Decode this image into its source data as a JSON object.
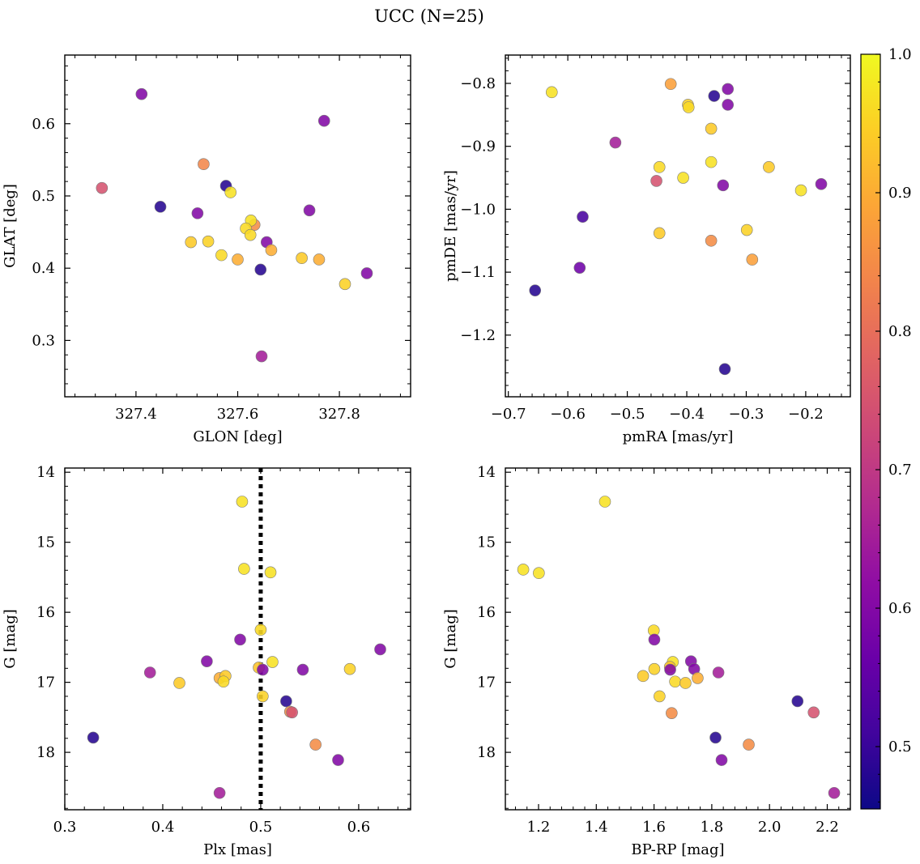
{
  "figure": {
    "title": "UCC (N=25)"
  },
  "colorbar": {
    "colormap": "plasma",
    "range": [
      0.455,
      1.0
    ],
    "ticks": [
      0.5,
      0.6,
      0.7,
      0.8,
      0.9,
      1.0
    ],
    "tick_labels": [
      "0.5",
      "0.6",
      "0.7",
      "0.8",
      "0.9",
      "1.0"
    ]
  },
  "chart_data": [
    {
      "type": "scatter",
      "id": "glon-glat",
      "title": "",
      "xlabel": "GLON [deg]",
      "ylabel": "GLAT [deg]",
      "xlim": [
        327.26,
        327.94
      ],
      "ylim": [
        0.222,
        0.695
      ],
      "y_inverted": false,
      "xticks": [
        327.4,
        327.6,
        327.8
      ],
      "xtick_labels": [
        "327.4",
        "327.6",
        "327.8"
      ],
      "yticks": [
        0.3,
        0.4,
        0.5,
        0.6
      ],
      "ytick_labels": [
        "0.3",
        "0.4",
        "0.5",
        "0.6"
      ],
      "points": [
        {
          "x": 327.411,
          "y": 0.641,
          "c": 0.6
        },
        {
          "x": 327.77,
          "y": 0.604,
          "c": 0.6
        },
        {
          "x": 327.333,
          "y": 0.511,
          "c": 0.75
        },
        {
          "x": 327.533,
          "y": 0.544,
          "c": 0.84
        },
        {
          "x": 327.448,
          "y": 0.485,
          "c": 0.48
        },
        {
          "x": 327.577,
          "y": 0.514,
          "c": 0.48
        },
        {
          "x": 327.586,
          "y": 0.505,
          "c": 0.97
        },
        {
          "x": 327.521,
          "y": 0.476,
          "c": 0.6
        },
        {
          "x": 327.741,
          "y": 0.48,
          "c": 0.6
        },
        {
          "x": 327.633,
          "y": 0.46,
          "c": 0.85
        },
        {
          "x": 327.626,
          "y": 0.466,
          "c": 0.97
        },
        {
          "x": 327.616,
          "y": 0.455,
          "c": 0.96
        },
        {
          "x": 327.625,
          "y": 0.446,
          "c": 0.96
        },
        {
          "x": 327.657,
          "y": 0.436,
          "c": 0.6
        },
        {
          "x": 327.508,
          "y": 0.436,
          "c": 0.94
        },
        {
          "x": 327.542,
          "y": 0.437,
          "c": 0.95
        },
        {
          "x": 327.666,
          "y": 0.425,
          "c": 0.9
        },
        {
          "x": 327.568,
          "y": 0.418,
          "c": 0.96
        },
        {
          "x": 327.6,
          "y": 0.412,
          "c": 0.9
        },
        {
          "x": 327.726,
          "y": 0.414,
          "c": 0.94
        },
        {
          "x": 327.76,
          "y": 0.412,
          "c": 0.9
        },
        {
          "x": 327.645,
          "y": 0.398,
          "c": 0.48
        },
        {
          "x": 327.811,
          "y": 0.378,
          "c": 0.95
        },
        {
          "x": 327.854,
          "y": 0.393,
          "c": 0.6
        },
        {
          "x": 327.647,
          "y": 0.278,
          "c": 0.65
        }
      ]
    },
    {
      "type": "scatter",
      "id": "pmra-pmde",
      "title": "",
      "xlabel": "pmRA [mas/yr]",
      "ylabel": "pmDE [mas/yr]",
      "xlim": [
        -0.705,
        -0.125
      ],
      "ylim": [
        -1.298,
        -0.755
      ],
      "y_inverted": false,
      "xticks": [
        -0.7,
        -0.6,
        -0.5,
        -0.4,
        -0.3,
        -0.2
      ],
      "xtick_labels": [
        "−0.7",
        "−0.6",
        "−0.5",
        "−0.4",
        "−0.3",
        "−0.2"
      ],
      "yticks": [
        -1.2,
        -1.1,
        -1.0,
        -0.9,
        -0.8
      ],
      "ytick_labels": [
        "−1.2",
        "−1.1",
        "−1.0",
        "−0.9",
        "−0.8"
      ],
      "points": [
        {
          "x": -0.627,
          "y": -0.814,
          "c": 0.97
        },
        {
          "x": -0.427,
          "y": -0.801,
          "c": 0.88
        },
        {
          "x": -0.354,
          "y": -0.82,
          "c": 0.48
        },
        {
          "x": -0.331,
          "y": -0.809,
          "c": 0.6
        },
        {
          "x": -0.331,
          "y": -0.834,
          "c": 0.6
        },
        {
          "x": -0.398,
          "y": -0.834,
          "c": 0.95
        },
        {
          "x": -0.397,
          "y": -0.838,
          "c": 0.96
        },
        {
          "x": -0.359,
          "y": -0.872,
          "c": 0.94
        },
        {
          "x": -0.52,
          "y": -0.894,
          "c": 0.65
        },
        {
          "x": -0.446,
          "y": -0.933,
          "c": 0.96
        },
        {
          "x": -0.359,
          "y": -0.925,
          "c": 0.97
        },
        {
          "x": -0.262,
          "y": -0.933,
          "c": 0.94
        },
        {
          "x": -0.406,
          "y": -0.95,
          "c": 0.97
        },
        {
          "x": -0.451,
          "y": -0.955,
          "c": 0.75
        },
        {
          "x": -0.339,
          "y": -0.962,
          "c": 0.6
        },
        {
          "x": -0.208,
          "y": -0.97,
          "c": 0.97
        },
        {
          "x": -0.174,
          "y": -0.96,
          "c": 0.6
        },
        {
          "x": -0.575,
          "y": -1.012,
          "c": 0.52
        },
        {
          "x": -0.446,
          "y": -1.038,
          "c": 0.94
        },
        {
          "x": -0.299,
          "y": -1.033,
          "c": 0.95
        },
        {
          "x": -0.359,
          "y": -1.05,
          "c": 0.85
        },
        {
          "x": -0.29,
          "y": -1.08,
          "c": 0.88
        },
        {
          "x": -0.58,
          "y": -1.093,
          "c": 0.57
        },
        {
          "x": -0.655,
          "y": -1.129,
          "c": 0.48
        },
        {
          "x": -0.336,
          "y": -1.254,
          "c": 0.48
        }
      ]
    },
    {
      "type": "scatter",
      "id": "plx-g",
      "title": "",
      "xlabel": "Plx [mas]",
      "ylabel": "G [mag]",
      "xlim": [
        0.3,
        0.653
      ],
      "ylim": [
        13.94,
        18.82
      ],
      "y_inverted": true,
      "vline": {
        "x": 0.5,
        "style": "dotted"
      },
      "xticks": [
        0.3,
        0.4,
        0.5,
        0.6
      ],
      "xtick_labels": [
        "0.3",
        "0.4",
        "0.5",
        "0.6"
      ],
      "yticks": [
        14,
        15,
        16,
        17,
        18
      ],
      "ytick_labels": [
        "14",
        "15",
        "16",
        "17",
        "18"
      ],
      "points": [
        {
          "x": 0.481,
          "y": 14.42,
          "c": 0.97
        },
        {
          "x": 0.483,
          "y": 15.38,
          "c": 0.97
        },
        {
          "x": 0.51,
          "y": 15.43,
          "c": 0.97
        },
        {
          "x": 0.5,
          "y": 16.25,
          "c": 0.96
        },
        {
          "x": 0.479,
          "y": 16.39,
          "c": 0.6
        },
        {
          "x": 0.622,
          "y": 16.53,
          "c": 0.6
        },
        {
          "x": 0.445,
          "y": 16.7,
          "c": 0.6
        },
        {
          "x": 0.512,
          "y": 16.71,
          "c": 0.97
        },
        {
          "x": 0.498,
          "y": 16.79,
          "c": 0.93
        },
        {
          "x": 0.502,
          "y": 16.82,
          "c": 0.6
        },
        {
          "x": 0.543,
          "y": 16.82,
          "c": 0.6
        },
        {
          "x": 0.591,
          "y": 16.81,
          "c": 0.95
        },
        {
          "x": 0.387,
          "y": 16.86,
          "c": 0.65
        },
        {
          "x": 0.458,
          "y": 16.94,
          "c": 0.9
        },
        {
          "x": 0.464,
          "y": 16.91,
          "c": 0.94
        },
        {
          "x": 0.462,
          "y": 16.99,
          "c": 0.96
        },
        {
          "x": 0.417,
          "y": 17.01,
          "c": 0.94
        },
        {
          "x": 0.502,
          "y": 17.2,
          "c": 0.95
        },
        {
          "x": 0.526,
          "y": 17.27,
          "c": 0.48
        },
        {
          "x": 0.53,
          "y": 17.42,
          "c": 0.85
        },
        {
          "x": 0.532,
          "y": 17.43,
          "c": 0.75
        },
        {
          "x": 0.329,
          "y": 17.79,
          "c": 0.48
        },
        {
          "x": 0.556,
          "y": 17.89,
          "c": 0.85
        },
        {
          "x": 0.579,
          "y": 18.11,
          "c": 0.6
        },
        {
          "x": 0.458,
          "y": 18.58,
          "c": 0.65
        }
      ]
    },
    {
      "type": "scatter",
      "id": "bprp-g",
      "title": "",
      "xlabel": "BP-RP [mag]",
      "ylabel": "G [mag]",
      "xlim": [
        1.085,
        2.28
      ],
      "ylim": [
        13.94,
        18.82
      ],
      "y_inverted": true,
      "xticks": [
        1.2,
        1.4,
        1.6,
        1.8,
        2.0,
        2.2
      ],
      "xtick_labels": [
        "1.2",
        "1.4",
        "1.6",
        "1.8",
        "2.0",
        "2.2"
      ],
      "yticks": [
        14,
        15,
        16,
        17,
        18
      ],
      "ytick_labels": [
        "14",
        "15",
        "16",
        "17",
        "18"
      ],
      "points": [
        {
          "x": 1.43,
          "y": 14.42,
          "c": 0.97
        },
        {
          "x": 1.147,
          "y": 15.39,
          "c": 0.97
        },
        {
          "x": 1.201,
          "y": 15.44,
          "c": 0.97
        },
        {
          "x": 1.599,
          "y": 16.26,
          "c": 0.96
        },
        {
          "x": 1.601,
          "y": 16.39,
          "c": 0.6
        },
        {
          "x": 1.728,
          "y": 16.7,
          "c": 0.6
        },
        {
          "x": 1.665,
          "y": 16.71,
          "c": 0.97
        },
        {
          "x": 1.655,
          "y": 16.78,
          "c": 0.93
        },
        {
          "x": 1.656,
          "y": 16.82,
          "c": 0.6
        },
        {
          "x": 1.739,
          "y": 16.81,
          "c": 0.6
        },
        {
          "x": 1.601,
          "y": 16.81,
          "c": 0.95
        },
        {
          "x": 1.823,
          "y": 16.86,
          "c": 0.65
        },
        {
          "x": 1.562,
          "y": 16.91,
          "c": 0.94
        },
        {
          "x": 1.751,
          "y": 16.94,
          "c": 0.9
        },
        {
          "x": 1.673,
          "y": 16.99,
          "c": 0.96
        },
        {
          "x": 1.709,
          "y": 17.01,
          "c": 0.94
        },
        {
          "x": 1.619,
          "y": 17.2,
          "c": 0.95
        },
        {
          "x": 2.097,
          "y": 17.27,
          "c": 0.48
        },
        {
          "x": 1.661,
          "y": 17.44,
          "c": 0.85
        },
        {
          "x": 2.153,
          "y": 17.43,
          "c": 0.75
        },
        {
          "x": 1.813,
          "y": 17.79,
          "c": 0.48
        },
        {
          "x": 1.928,
          "y": 17.89,
          "c": 0.85
        },
        {
          "x": 1.834,
          "y": 18.11,
          "c": 0.6
        },
        {
          "x": 2.224,
          "y": 18.58,
          "c": 0.65
        }
      ]
    }
  ]
}
